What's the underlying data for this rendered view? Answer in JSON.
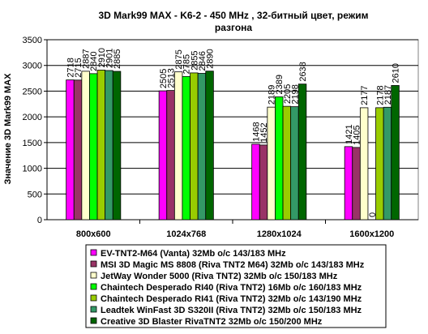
{
  "chart_data": {
    "type": "bar",
    "title_lines": [
      "3D Mark99 MAX - K6-2 - 450 MHz ,  32-битный цвет, режим",
      "разгона"
    ],
    "ylabel": "Значение 3D Mark99 MAX",
    "xlabel": "",
    "ylim": [
      0,
      3500
    ],
    "yticks": [
      "0",
      "500",
      "1000",
      "1500",
      "2000",
      "2500",
      "3000",
      "3500"
    ],
    "categories": [
      "800x600",
      "1024x768",
      "1280x1024",
      "1600x1200"
    ],
    "series": [
      {
        "name": "EV-TNT2-M64 (Vanta) 32Mb o/c 143/183 MHz",
        "color": "#ff00ff",
        "values": [
          2718,
          2505,
          1468,
          1421
        ]
      },
      {
        "name": "MSI 3D Magic MS 8808 (Riva TNT2 M64) 32Mb o/c 143/183 MHz",
        "color": "#993366",
        "values": [
          2715,
          2513,
          1452,
          1405
        ]
      },
      {
        "name": "JetWay Wonder 5000 (Riva TNT2) 32Mb o/c 150/183 MHz",
        "color": "#ffffcc",
        "values": [
          2887,
          2875,
          2189,
          2177
        ]
      },
      {
        "name": "Chaintech Desperado RI40 (Riva TNT2) 16Mb o/c 160/183 MHz",
        "color": "#00ff00",
        "values": [
          2840,
          2785,
          2389,
          0
        ]
      },
      {
        "name": "Chaintech Desperado RI41 (Riva TNT2) 32Mb o/c 143/190 MHz",
        "color": "#99cc00",
        "values": [
          2910,
          2855,
          2205,
          2178
        ]
      },
      {
        "name": "Leadtek WinFast 3D S320II (Riva TNT2) 32Mb o/c 150/183 MHz",
        "color": "#339966",
        "values": [
          2901,
          2846,
          2198,
          2187
        ]
      },
      {
        "name": "Creative 3D Blaster RivaTNT2 32Mb o/c 150/200 MHz",
        "color": "#006600",
        "values": [
          2885,
          2890,
          2638,
          2610
        ]
      }
    ],
    "grid": true,
    "legend_position": "bottom",
    "plot_background": "#ffffff"
  }
}
